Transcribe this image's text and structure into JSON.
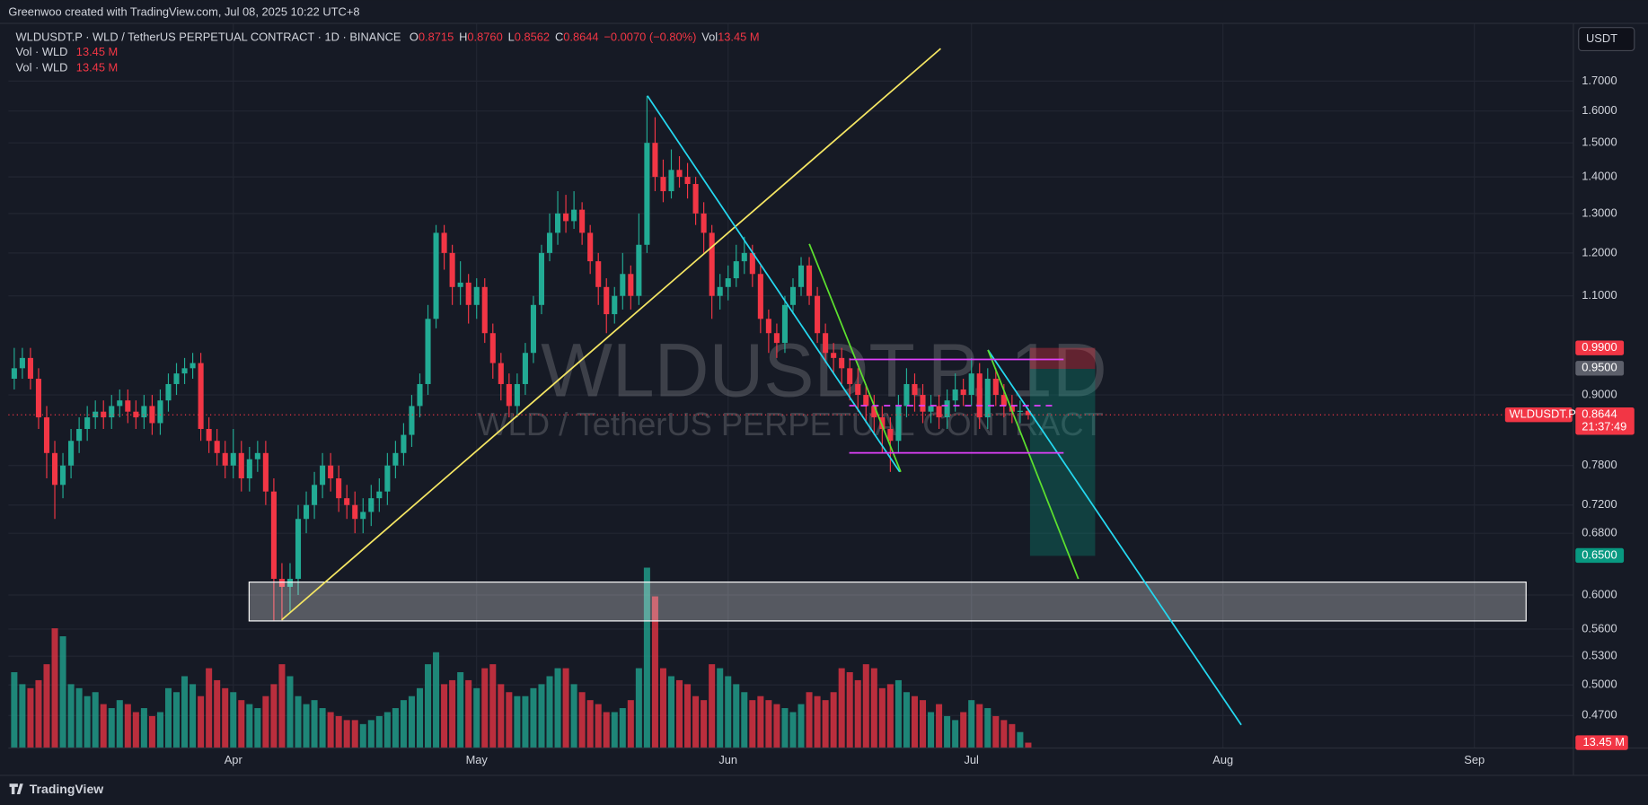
{
  "header": {
    "credit": "Greenwoo created with TradingView.com, Jul 08, 2025 10:22 UTC+8",
    "symbol": "WLDUSDT.P · WLD / TetherUS PERPETUAL CONTRACT · 1D · BINANCE",
    "o_label": "O",
    "open": "0.8715",
    "h_label": "H",
    "high": "0.8760",
    "l_label": "L",
    "low": "0.8562",
    "c_label": "C",
    "close": "0.8644",
    "change": "−0.0070 (−0.80%)",
    "vol_label": "Vol",
    "vol": "13.45 M",
    "indicators": [
      {
        "name": "Vol · WLD",
        "value": "13.45 M"
      },
      {
        "name": "Vol · WLD",
        "value": "13.45 M"
      }
    ]
  },
  "watermark": {
    "line1": "WLDUSDT.P, 1D",
    "line2": "WLD / TetherUS PERPETUAL CONTRACT"
  },
  "currency": "USDT",
  "footer": "TradingView",
  "chart_data": {
    "type": "candlestick",
    "log_scale": true,
    "grid": true,
    "up_color": "#22ab94",
    "down_color": "#f23645",
    "xlim": [
      3.28,
      196.2
    ],
    "ylim": [
      0.44,
      1.911
    ],
    "volume_lim": [
      0,
      500
    ],
    "xticks": [
      {
        "value": 31,
        "label": "Apr"
      },
      {
        "value": 61,
        "label": "May"
      },
      {
        "value": 92,
        "label": "Jun"
      },
      {
        "value": 122,
        "label": "Jul"
      },
      {
        "value": 153,
        "label": "Aug"
      },
      {
        "value": 184,
        "label": "Sep"
      }
    ],
    "yticks": [
      {
        "value": 1.7,
        "label": "1.7000"
      },
      {
        "value": 1.6,
        "label": "1.6000"
      },
      {
        "value": 1.5,
        "label": "1.5000"
      },
      {
        "value": 1.4,
        "label": "1.4000"
      },
      {
        "value": 1.3,
        "label": "1.3000"
      },
      {
        "value": 1.2,
        "label": "1.2000"
      },
      {
        "value": 1.1,
        "label": "1.1000"
      },
      {
        "value": 0.9,
        "label": "0.9000"
      },
      {
        "value": 0.78,
        "label": "0.7800"
      },
      {
        "value": 0.72,
        "label": "0.7200"
      },
      {
        "value": 0.68,
        "label": "0.6800"
      },
      {
        "value": 0.6,
        "label": "0.6000"
      },
      {
        "value": 0.56,
        "label": "0.5600"
      },
      {
        "value": 0.53,
        "label": "0.5300"
      },
      {
        "value": 0.5,
        "label": "0.5000"
      },
      {
        "value": 0.47,
        "label": "0.4700"
      }
    ],
    "price_labels": [
      {
        "value": 0.99,
        "label": "0.9900",
        "color": "#f23645"
      },
      {
        "value": 0.95,
        "label": "0.9500",
        "color": "#5d606b"
      },
      {
        "value": 0.65,
        "label": "0.6500",
        "color": "#089981"
      }
    ],
    "last_price": {
      "value": 0.8644,
      "label": "0.8644",
      "countdown": "21:37:49",
      "symbol": "WLDUSDT.P"
    },
    "volume_label": "13.45 M",
    "candles": [
      [
        4,
        0.93,
        0.99,
        0.91,
        0.95
      ],
      [
        5,
        0.95,
        0.99,
        0.93,
        0.97
      ],
      [
        6,
        0.97,
        0.99,
        0.91,
        0.93
      ],
      [
        7,
        0.93,
        0.95,
        0.84,
        0.86
      ],
      [
        8,
        0.86,
        0.88,
        0.76,
        0.8
      ],
      [
        9,
        0.8,
        0.82,
        0.7,
        0.75
      ],
      [
        10,
        0.75,
        0.8,
        0.73,
        0.78
      ],
      [
        11,
        0.78,
        0.84,
        0.76,
        0.82
      ],
      [
        12,
        0.82,
        0.86,
        0.8,
        0.84
      ],
      [
        13,
        0.84,
        0.88,
        0.82,
        0.86
      ],
      [
        14,
        0.86,
        0.89,
        0.84,
        0.87
      ],
      [
        15,
        0.87,
        0.89,
        0.84,
        0.86
      ],
      [
        16,
        0.86,
        0.9,
        0.84,
        0.88
      ],
      [
        17,
        0.88,
        0.91,
        0.86,
        0.89
      ],
      [
        18,
        0.89,
        0.91,
        0.85,
        0.87
      ],
      [
        19,
        0.87,
        0.89,
        0.84,
        0.86
      ],
      [
        20,
        0.86,
        0.9,
        0.84,
        0.88
      ],
      [
        21,
        0.88,
        0.9,
        0.83,
        0.85
      ],
      [
        22,
        0.85,
        0.91,
        0.83,
        0.89
      ],
      [
        23,
        0.89,
        0.94,
        0.87,
        0.92
      ],
      [
        24,
        0.92,
        0.96,
        0.9,
        0.94
      ],
      [
        25,
        0.94,
        0.97,
        0.92,
        0.95
      ],
      [
        26,
        0.95,
        0.98,
        0.93,
        0.96
      ],
      [
        27,
        0.96,
        0.98,
        0.82,
        0.84
      ],
      [
        28,
        0.84,
        0.86,
        0.8,
        0.82
      ],
      [
        29,
        0.82,
        0.84,
        0.78,
        0.8
      ],
      [
        30,
        0.8,
        0.82,
        0.76,
        0.78
      ],
      [
        31,
        0.78,
        0.84,
        0.76,
        0.8
      ],
      [
        32,
        0.8,
        0.82,
        0.74,
        0.76
      ],
      [
        33,
        0.76,
        0.81,
        0.74,
        0.79
      ],
      [
        34,
        0.79,
        0.82,
        0.77,
        0.8
      ],
      [
        35,
        0.8,
        0.82,
        0.72,
        0.74
      ],
      [
        36,
        0.74,
        0.76,
        0.57,
        0.62
      ],
      [
        37,
        0.62,
        0.64,
        0.57,
        0.61
      ],
      [
        38,
        0.61,
        0.64,
        0.58,
        0.62
      ],
      [
        39,
        0.62,
        0.72,
        0.6,
        0.7
      ],
      [
        40,
        0.7,
        0.74,
        0.68,
        0.72
      ],
      [
        41,
        0.72,
        0.77,
        0.7,
        0.75
      ],
      [
        42,
        0.75,
        0.8,
        0.73,
        0.78
      ],
      [
        43,
        0.78,
        0.8,
        0.74,
        0.76
      ],
      [
        44,
        0.76,
        0.78,
        0.71,
        0.73
      ],
      [
        45,
        0.73,
        0.75,
        0.7,
        0.72
      ],
      [
        46,
        0.72,
        0.74,
        0.68,
        0.7
      ],
      [
        47,
        0.7,
        0.73,
        0.68,
        0.71
      ],
      [
        48,
        0.71,
        0.75,
        0.69,
        0.73
      ],
      [
        49,
        0.73,
        0.76,
        0.71,
        0.74
      ],
      [
        50,
        0.74,
        0.8,
        0.72,
        0.78
      ],
      [
        51,
        0.78,
        0.82,
        0.76,
        0.8
      ],
      [
        52,
        0.8,
        0.85,
        0.78,
        0.83
      ],
      [
        53,
        0.83,
        0.9,
        0.81,
        0.88
      ],
      [
        54,
        0.88,
        0.94,
        0.86,
        0.92
      ],
      [
        55,
        0.92,
        1.08,
        0.9,
        1.05
      ],
      [
        56,
        1.05,
        1.27,
        1.03,
        1.25
      ],
      [
        57,
        1.25,
        1.27,
        1.16,
        1.2
      ],
      [
        58,
        1.2,
        1.22,
        1.08,
        1.12
      ],
      [
        59,
        1.12,
        1.18,
        1.08,
        1.13
      ],
      [
        60,
        1.13,
        1.15,
        1.04,
        1.08
      ],
      [
        61,
        1.08,
        1.14,
        1.05,
        1.12
      ],
      [
        62,
        1.12,
        1.14,
        1.0,
        1.02
      ],
      [
        63,
        1.02,
        1.04,
        0.93,
        0.96
      ],
      [
        64,
        0.96,
        0.98,
        0.89,
        0.92
      ],
      [
        65,
        0.92,
        0.94,
        0.86,
        0.88
      ],
      [
        66,
        0.88,
        0.94,
        0.86,
        0.92
      ],
      [
        67,
        0.92,
        1.0,
        0.9,
        0.98
      ],
      [
        68,
        0.98,
        1.1,
        0.96,
        1.08
      ],
      [
        69,
        1.08,
        1.22,
        1.06,
        1.2
      ],
      [
        70,
        1.2,
        1.3,
        1.18,
        1.25
      ],
      [
        71,
        1.25,
        1.36,
        1.22,
        1.3
      ],
      [
        72,
        1.3,
        1.35,
        1.25,
        1.28
      ],
      [
        73,
        1.28,
        1.36,
        1.26,
        1.31
      ],
      [
        74,
        1.31,
        1.33,
        1.22,
        1.25
      ],
      [
        75,
        1.25,
        1.27,
        1.15,
        1.18
      ],
      [
        76,
        1.18,
        1.2,
        1.08,
        1.12
      ],
      [
        77,
        1.12,
        1.14,
        1.02,
        1.06
      ],
      [
        78,
        1.06,
        1.12,
        1.04,
        1.1
      ],
      [
        79,
        1.1,
        1.2,
        1.07,
        1.15
      ],
      [
        80,
        1.15,
        1.17,
        1.07,
        1.1
      ],
      [
        81,
        1.1,
        1.3,
        1.08,
        1.22
      ],
      [
        82,
        1.22,
        1.65,
        1.2,
        1.5
      ],
      [
        83,
        1.5,
        1.58,
        1.36,
        1.4
      ],
      [
        84,
        1.4,
        1.45,
        1.33,
        1.36
      ],
      [
        85,
        1.36,
        1.48,
        1.34,
        1.42
      ],
      [
        86,
        1.42,
        1.46,
        1.37,
        1.4
      ],
      [
        87,
        1.4,
        1.44,
        1.34,
        1.38
      ],
      [
        88,
        1.38,
        1.4,
        1.27,
        1.3
      ],
      [
        89,
        1.3,
        1.33,
        1.2,
        1.25
      ],
      [
        90,
        1.25,
        1.27,
        1.05,
        1.1
      ],
      [
        91,
        1.1,
        1.15,
        1.07,
        1.12
      ],
      [
        92,
        1.12,
        1.17,
        1.09,
        1.14
      ],
      [
        93,
        1.14,
        1.22,
        1.12,
        1.18
      ],
      [
        94,
        1.18,
        1.24,
        1.15,
        1.2
      ],
      [
        95,
        1.2,
        1.22,
        1.12,
        1.15
      ],
      [
        96,
        1.15,
        1.17,
        1.02,
        1.05
      ],
      [
        97,
        1.05,
        1.07,
        0.98,
        1.02
      ],
      [
        98,
        1.02,
        1.04,
        0.97,
        1.0
      ],
      [
        99,
        1.0,
        1.1,
        0.98,
        1.08
      ],
      [
        100,
        1.08,
        1.14,
        1.06,
        1.12
      ],
      [
        101,
        1.12,
        1.19,
        1.1,
        1.17
      ],
      [
        102,
        1.17,
        1.19,
        1.08,
        1.1
      ],
      [
        103,
        1.1,
        1.12,
        1.0,
        1.02
      ],
      [
        104,
        1.02,
        1.04,
        0.96,
        0.98
      ],
      [
        105,
        0.98,
        1.0,
        0.94,
        0.97
      ],
      [
        106,
        0.97,
        0.99,
        0.92,
        0.95
      ],
      [
        107,
        0.95,
        0.97,
        0.89,
        0.92
      ],
      [
        108,
        0.92,
        0.95,
        0.87,
        0.9
      ],
      [
        109,
        0.9,
        0.92,
        0.85,
        0.88
      ],
      [
        110,
        0.88,
        0.9,
        0.83,
        0.86
      ],
      [
        111,
        0.86,
        0.88,
        0.8,
        0.84
      ],
      [
        112,
        0.84,
        0.86,
        0.77,
        0.82
      ],
      [
        113,
        0.82,
        0.9,
        0.8,
        0.88
      ],
      [
        114,
        0.88,
        0.95,
        0.86,
        0.92
      ],
      [
        115,
        0.92,
        0.94,
        0.87,
        0.9
      ],
      [
        116,
        0.9,
        0.92,
        0.85,
        0.87
      ],
      [
        117,
        0.87,
        0.9,
        0.85,
        0.88
      ],
      [
        118,
        0.88,
        0.9,
        0.84,
        0.86
      ],
      [
        119,
        0.86,
        0.91,
        0.84,
        0.89
      ],
      [
        120,
        0.89,
        0.94,
        0.87,
        0.91
      ],
      [
        121,
        0.91,
        0.93,
        0.88,
        0.9
      ],
      [
        122,
        0.9,
        0.97,
        0.88,
        0.94
      ],
      [
        123,
        0.94,
        0.96,
        0.84,
        0.86
      ],
      [
        124,
        0.86,
        0.95,
        0.84,
        0.93
      ],
      [
        125,
        0.93,
        0.95,
        0.88,
        0.9
      ],
      [
        126,
        0.9,
        0.92,
        0.86,
        0.88
      ],
      [
        127,
        0.88,
        0.9,
        0.85,
        0.87
      ],
      [
        128,
        0.87,
        0.89,
        0.85,
        0.8715
      ],
      [
        129,
        0.8715,
        0.876,
        0.8562,
        0.8644
      ]
    ],
    "volumes": [
      190,
      160,
      150,
      170,
      210,
      300,
      280,
      160,
      150,
      130,
      140,
      110,
      100,
      120,
      110,
      90,
      100,
      80,
      90,
      150,
      140,
      180,
      160,
      130,
      200,
      170,
      150,
      140,
      120,
      110,
      100,
      130,
      160,
      210,
      180,
      130,
      110,
      120,
      100,
      90,
      80,
      70,
      70,
      60,
      70,
      80,
      90,
      100,
      120,
      130,
      150,
      210,
      240,
      160,
      170,
      190,
      170,
      150,
      200,
      210,
      160,
      140,
      130,
      130,
      150,
      160,
      180,
      200,
      200,
      160,
      140,
      120,
      110,
      90,
      90,
      100,
      120,
      200,
      452,
      380,
      200,
      180,
      170,
      160,
      130,
      120,
      210,
      200,
      180,
      160,
      140,
      120,
      130,
      120,
      110,
      100,
      90,
      110,
      140,
      130,
      120,
      140,
      200,
      190,
      170,
      210,
      200,
      150,
      160,
      170,
      140,
      130,
      120,
      90,
      110,
      80,
      70,
      90,
      120,
      110,
      100,
      80,
      70,
      60,
      40,
      13.45
    ]
  }
}
